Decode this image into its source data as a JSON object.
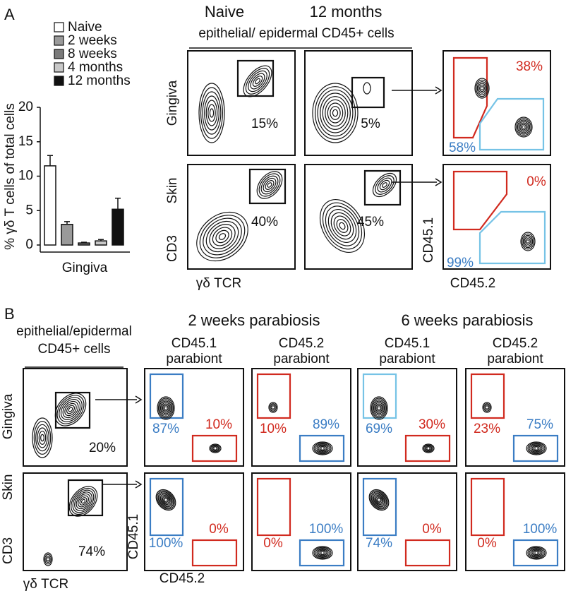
{
  "panel_a": {
    "label": "A",
    "columns": [
      "Naive",
      "12 months"
    ],
    "population": "epithelial/ epidermal CD45+ cells",
    "rows": [
      "Gingiva",
      "Skin"
    ],
    "y_axis": "CD3",
    "x_axis": "γδ TCR",
    "gate_percents": [
      [
        "15%",
        "5%"
      ],
      [
        "40%",
        "45%"
      ]
    ],
    "chimerism": {
      "y_axis": "CD45.1",
      "x_axis": "CD45.2",
      "red_percents": [
        "38%",
        "0%"
      ],
      "blue_percents": [
        "58%",
        "99%"
      ]
    }
  },
  "chart_data": {
    "type": "bar",
    "categories": [
      "Gingiva"
    ],
    "ylabel": "% γδ T cells of total cells",
    "ylim": [
      0,
      20
    ],
    "yticks": [
      0,
      5,
      10,
      15,
      20
    ],
    "series": [
      {
        "name": "Naive",
        "color": "#ffffff",
        "values": [
          11.5
        ],
        "errors": [
          1.5
        ]
      },
      {
        "name": "2 weeks",
        "color": "#9a9a9a",
        "values": [
          3.0
        ],
        "errors": [
          0.4
        ]
      },
      {
        "name": "8 weeks",
        "color": "#7a7a7a",
        "values": [
          0.3
        ],
        "errors": [
          0.1
        ]
      },
      {
        "name": "4 months",
        "color": "#c8c8c8",
        "values": [
          0.6
        ],
        "errors": [
          0.2
        ]
      },
      {
        "name": "12 months",
        "color": "#111111",
        "values": [
          5.2
        ],
        "errors": [
          1.6
        ]
      }
    ]
  },
  "panel_b": {
    "label": "B",
    "population": [
      "epithelial/epidermal",
      "CD45+ cells"
    ],
    "rows": [
      "Gingiva",
      "Skin"
    ],
    "y_axis": "CD3",
    "x_axis": "γδ TCR",
    "gate_percents": [
      "20%",
      "74%"
    ],
    "timepoints": [
      "2 weeks parabiosis",
      "6 weeks parabiosis"
    ],
    "columns": [
      [
        "CD45.1",
        "parabiont"
      ],
      [
        "CD45.2",
        "parabiont"
      ],
      [
        "CD45.1",
        "parabiont"
      ],
      [
        "CD45.2",
        "parabiont"
      ]
    ],
    "chimerism_y_axis": "CD45.1",
    "chimerism_x_axis": "CD45.2",
    "blue_percents": [
      [
        "87%",
        "89%",
        "69%",
        "75%"
      ],
      [
        "100%",
        "100%",
        "74%",
        "100%"
      ]
    ],
    "red_percents": [
      [
        "10%",
        "10%",
        "30%",
        "23%"
      ],
      [
        "0%",
        "0%",
        "0%",
        "0%"
      ]
    ]
  }
}
